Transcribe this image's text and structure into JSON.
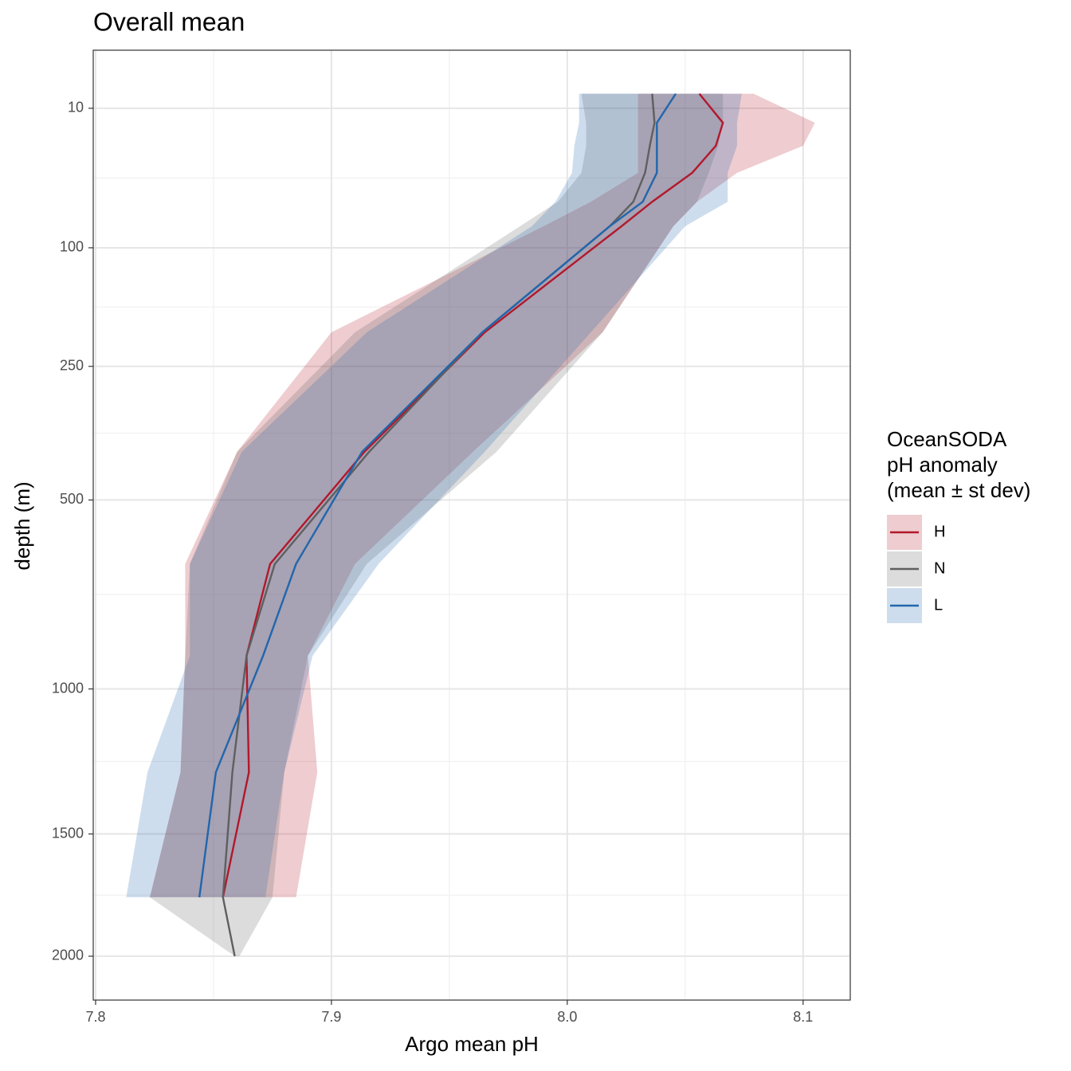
{
  "chart_data": {
    "type": "line",
    "title": "Overall mean",
    "x_label": "Argo mean pH",
    "y_label": "depth (m)",
    "legend_title": [
      "OceanSODA",
      "pH anomaly",
      "(mean ± st dev)"
    ],
    "depth": [
      6,
      15,
      25,
      40,
      60,
      80,
      200,
      400,
      650,
      900,
      1275,
      1750,
      2000
    ],
    "series": [
      {
        "name": "H",
        "color": "#b2182b",
        "values": [
          8.056,
          8.066,
          8.063,
          8.053,
          8.036,
          8.023,
          7.965,
          7.914,
          7.874,
          7.864,
          7.865,
          7.854,
          null
        ],
        "lower": [
          8.03,
          8.03,
          8.03,
          8.03,
          8.01,
          7.99,
          7.9,
          7.86,
          7.838,
          7.838,
          7.836,
          7.823,
          null
        ],
        "upper": [
          8.079,
          8.105,
          8.1,
          8.072,
          8.055,
          8.045,
          8.015,
          7.96,
          7.91,
          7.89,
          7.894,
          7.885,
          null
        ]
      },
      {
        "name": "N",
        "color": "#5f5f5f",
        "values": [
          8.036,
          8.037,
          8.035,
          8.033,
          8.028,
          8.018,
          7.964,
          7.916,
          7.876,
          7.864,
          7.858,
          7.854,
          7.859
        ],
        "lower": [
          8.006,
          8.008,
          8.008,
          8.006,
          7.996,
          7.98,
          7.91,
          7.86,
          7.84,
          7.838,
          7.836,
          7.823,
          7.859
        ],
        "upper": [
          8.066,
          8.066,
          8.064,
          8.06,
          8.055,
          8.045,
          8.015,
          7.97,
          7.915,
          7.89,
          7.88,
          7.875,
          7.861
        ]
      },
      {
        "name": "L",
        "color": "#2166ac",
        "values": [
          8.046,
          8.038,
          8.038,
          8.038,
          8.032,
          8.018,
          7.964,
          7.913,
          7.885,
          7.871,
          7.851,
          7.844,
          null
        ],
        "lower": [
          8.005,
          8.005,
          8.003,
          8.002,
          7.995,
          7.985,
          7.915,
          7.862,
          7.84,
          7.84,
          7.822,
          7.813,
          null
        ],
        "upper": [
          8.074,
          8.072,
          8.072,
          8.068,
          8.068,
          8.05,
          8.01,
          7.965,
          7.92,
          7.892,
          7.88,
          7.872,
          null
        ]
      }
    ],
    "xlim": [
      7.799,
      8.12
    ],
    "xticks": [
      {
        "value": 7.8,
        "label": "7.8"
      },
      {
        "value": 7.9,
        "label": "7.9"
      },
      {
        "value": 8.0,
        "label": "8.0"
      },
      {
        "value": 8.1,
        "label": "8.1"
      }
    ],
    "ylim": [
      0.1,
      2197
    ],
    "yticks": [
      10,
      100,
      250,
      500,
      1000,
      1500,
      2000
    ],
    "y_scale": "sqrt",
    "y_reversed": true,
    "grid": true,
    "ribbon_opacity": 0.22
  }
}
